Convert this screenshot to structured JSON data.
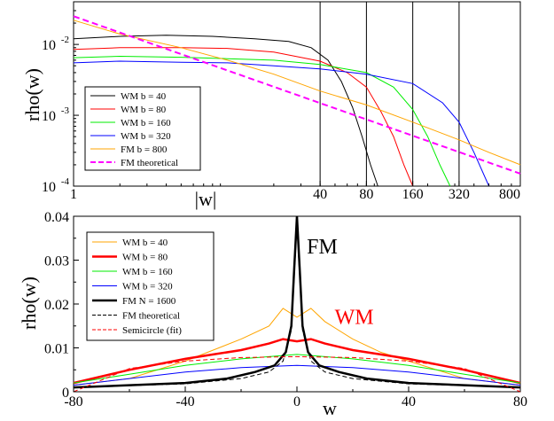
{
  "chart_data": [
    {
      "type": "line",
      "xscale": "log",
      "yscale": "log",
      "xlim": [
        1,
        800
      ],
      "ylim": [
        0.0001,
        0.04
      ],
      "xlabel": "|w|",
      "ylabel": "rho(w)",
      "x_ticks": [
        "1",
        "40",
        "80",
        "160",
        "320",
        "800"
      ],
      "y_ticks": [
        "10-4",
        "10-3",
        "10-2"
      ],
      "vlines": [
        40,
        80,
        160,
        320
      ],
      "legend_position": "lower-left",
      "series": [
        {
          "name": "WM b = 40",
          "color": "#000000",
          "style": "solid",
          "width": 1,
          "x": [
            1,
            2,
            4,
            8,
            15,
            25,
            35,
            45,
            55,
            65,
            75,
            85,
            95
          ],
          "y": [
            0.012,
            0.013,
            0.0135,
            0.013,
            0.012,
            0.011,
            0.009,
            0.006,
            0.003,
            0.0013,
            0.0005,
            0.0002,
            0.0001
          ]
        },
        {
          "name": "WM b = 80",
          "color": "#ff0000",
          "style": "solid",
          "width": 1,
          "x": [
            1,
            2,
            5,
            10,
            20,
            40,
            60,
            80,
            100,
            120,
            140,
            160
          ],
          "y": [
            0.0085,
            0.009,
            0.009,
            0.0088,
            0.0078,
            0.0058,
            0.004,
            0.0025,
            0.0011,
            0.0005,
            0.0002,
            0.0001
          ]
        },
        {
          "name": "WM b = 160",
          "color": "#00ee00",
          "style": "solid",
          "width": 1,
          "x": [
            1,
            2,
            5,
            10,
            20,
            40,
            80,
            120,
            160,
            200,
            240,
            280
          ],
          "y": [
            0.0065,
            0.0068,
            0.0066,
            0.0063,
            0.006,
            0.0052,
            0.004,
            0.0025,
            0.0012,
            0.0005,
            0.0002,
            0.0001
          ]
        },
        {
          "name": "WM b = 320",
          "color": "#0000ff",
          "style": "solid",
          "width": 1,
          "x": [
            1,
            2,
            5,
            10,
            20,
            40,
            80,
            160,
            250,
            320,
            400,
            500
          ],
          "y": [
            0.0055,
            0.0058,
            0.0056,
            0.0055,
            0.005,
            0.0045,
            0.0038,
            0.0028,
            0.0015,
            0.0008,
            0.0003,
            0.0001
          ]
        },
        {
          "name": "FM b = 800",
          "color": "#ffa500",
          "style": "solid",
          "width": 1,
          "x": [
            1,
            2,
            5,
            10,
            20,
            40,
            80,
            160,
            320,
            500,
            800
          ],
          "y": [
            0.022,
            0.014,
            0.009,
            0.006,
            0.0038,
            0.0022,
            0.0014,
            0.0008,
            0.00045,
            0.0003,
            0.0002
          ]
        },
        {
          "name": "FM theoretical",
          "color": "#ff00ff",
          "style": "dashed",
          "width": 2,
          "x": [
            1,
            800
          ],
          "y": [
            0.025,
            0.00015
          ]
        }
      ]
    },
    {
      "type": "line",
      "xlim": [
        -80,
        80
      ],
      "ylim": [
        0,
        0.04
      ],
      "xlabel": "w",
      "ylabel": "rho(w)",
      "x_ticks": [
        "-80",
        "-40",
        "0",
        "40",
        "80"
      ],
      "y_ticks": [
        "0",
        "0.01",
        "0.02",
        "0.03",
        "0.04"
      ],
      "legend_position": "top-left",
      "annotations": [
        {
          "text": "FM",
          "x": 1,
          "y": 0.0315,
          "color": "#000000"
        },
        {
          "text": "WM",
          "x": 11,
          "y": 0.0155,
          "color": "#ff0000"
        }
      ],
      "series": [
        {
          "name": "WM b = 40",
          "color": "#ffa500",
          "style": "solid",
          "width": 1,
          "x": [
            -80,
            -60,
            -40,
            -30,
            -20,
            -10,
            -5,
            0,
            5,
            10,
            20,
            30,
            40,
            60,
            80
          ],
          "y": [
            0.0015,
            0.003,
            0.007,
            0.0095,
            0.012,
            0.015,
            0.019,
            0.017,
            0.019,
            0.016,
            0.012,
            0.009,
            0.007,
            0.003,
            0.0015
          ]
        },
        {
          "name": "WM b = 80",
          "color": "#ff0000",
          "style": "solid",
          "width": 2.5,
          "x": [
            -80,
            -60,
            -40,
            -30,
            -20,
            -10,
            -5,
            0,
            5,
            10,
            20,
            30,
            40,
            60,
            80
          ],
          "y": [
            0.002,
            0.005,
            0.0075,
            0.0085,
            0.0095,
            0.011,
            0.012,
            0.0115,
            0.012,
            0.011,
            0.0095,
            0.0085,
            0.0075,
            0.005,
            0.002
          ]
        },
        {
          "name": "WM b = 160",
          "color": "#00ee00",
          "style": "solid",
          "width": 1,
          "x": [
            -80,
            -60,
            -40,
            -20,
            -10,
            0,
            10,
            20,
            40,
            60,
            80
          ],
          "y": [
            0.002,
            0.004,
            0.006,
            0.0075,
            0.008,
            0.0085,
            0.008,
            0.0075,
            0.006,
            0.004,
            0.002
          ]
        },
        {
          "name": "WM b = 320",
          "color": "#0000ff",
          "style": "solid",
          "width": 1,
          "x": [
            -80,
            -60,
            -40,
            -20,
            0,
            20,
            40,
            60,
            80
          ],
          "y": [
            0.0015,
            0.003,
            0.0045,
            0.0055,
            0.006,
            0.0055,
            0.0045,
            0.003,
            0.0015
          ]
        },
        {
          "name": "FM N = 1600",
          "color": "#000000",
          "style": "solid",
          "width": 2.5,
          "x": [
            -80,
            -60,
            -40,
            -25,
            -15,
            -8,
            -4,
            -2,
            -1,
            0,
            1,
            2,
            4,
            8,
            15,
            25,
            40,
            60,
            80
          ],
          "y": [
            0.001,
            0.0015,
            0.002,
            0.003,
            0.0045,
            0.006,
            0.009,
            0.015,
            0.028,
            0.04,
            0.028,
            0.015,
            0.009,
            0.006,
            0.0045,
            0.003,
            0.002,
            0.0015,
            0.001
          ]
        },
        {
          "name": "FM theoretical",
          "color": "#000000",
          "style": "dashed",
          "width": 1,
          "x": [
            -80,
            -40,
            -20,
            -10,
            -5,
            -2,
            0,
            2,
            5,
            10,
            20,
            40,
            80
          ],
          "y": [
            0.001,
            0.0018,
            0.003,
            0.0045,
            0.007,
            0.014,
            0.038,
            0.014,
            0.007,
            0.0045,
            0.003,
            0.0018,
            0.001
          ]
        },
        {
          "name": "Semicircle (fit)",
          "color": "#ff0000",
          "style": "dashed",
          "width": 1,
          "x": [
            -80,
            -60,
            -40,
            -20,
            0,
            20,
            40,
            60,
            80
          ],
          "y": [
            0.0,
            0.0053,
            0.007,
            0.0078,
            0.008,
            0.0078,
            0.007,
            0.0053,
            0.0
          ]
        }
      ]
    }
  ]
}
